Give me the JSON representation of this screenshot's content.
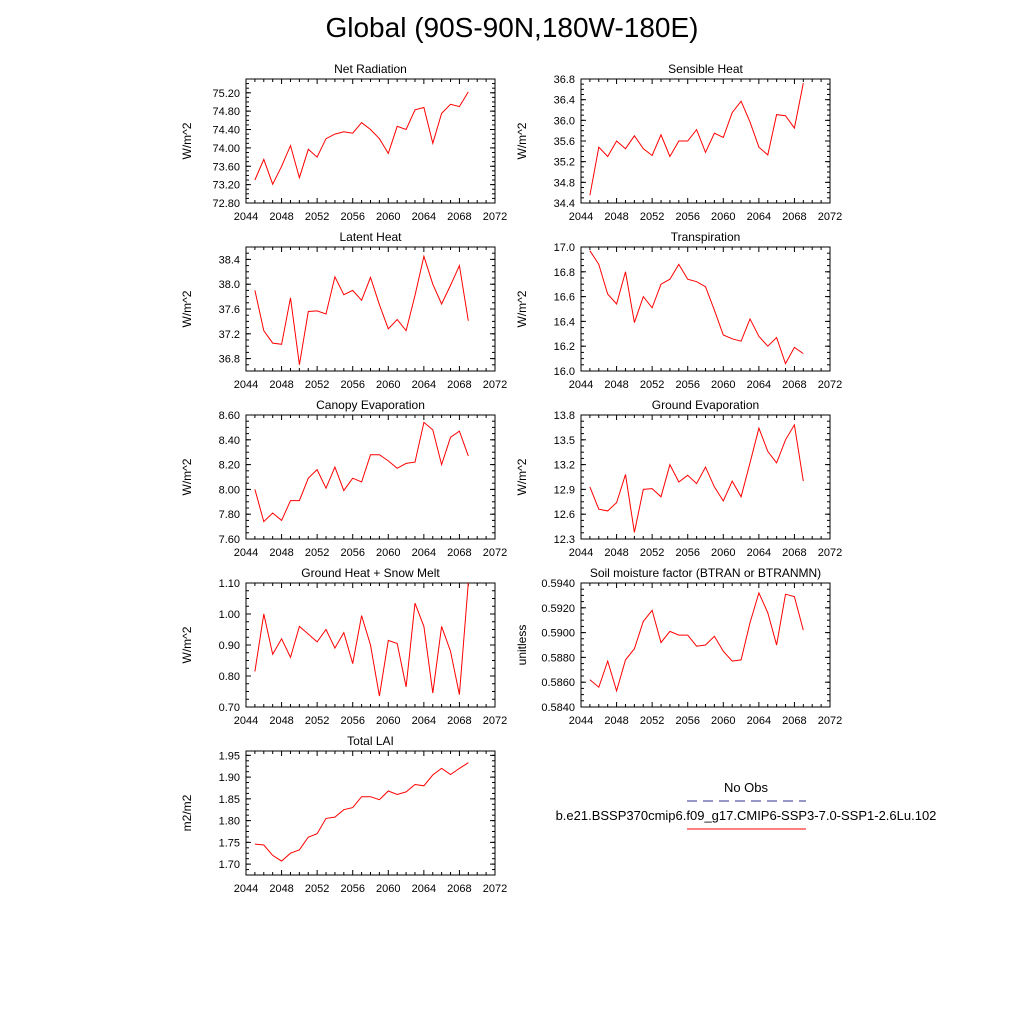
{
  "figure_title": "Global (90S-90N,180W-180E)",
  "chart_data": [
    {
      "type": "line",
      "title": "Net Radiation",
      "ylabel": "W/m^2",
      "xlim": [
        2044,
        2072
      ],
      "xticks": [
        "2044",
        "2048",
        "2052",
        "2056",
        "2060",
        "2064",
        "2068",
        "2072"
      ],
      "ylim": [
        72.8,
        75.5
      ],
      "yticks": [
        "72.80",
        "73.20",
        "73.60",
        "74.00",
        "74.40",
        "74.80",
        "75.20"
      ],
      "x": [
        2045,
        2046,
        2047,
        2048,
        2049,
        2050,
        2051,
        2052,
        2053,
        2054,
        2055,
        2056,
        2057,
        2058,
        2059,
        2060,
        2061,
        2062,
        2063,
        2064,
        2065,
        2066,
        2067,
        2068,
        2069
      ],
      "series": [
        {
          "color": "#ff0000",
          "values": [
            73.3,
            73.75,
            73.21,
            73.6,
            74.05,
            73.35,
            73.97,
            73.8,
            74.2,
            74.3,
            74.35,
            74.32,
            74.55,
            74.4,
            74.2,
            73.88,
            74.47,
            74.4,
            74.83,
            74.88,
            74.1,
            74.75,
            74.95,
            74.9,
            75.22
          ]
        }
      ]
    },
    {
      "type": "line",
      "title": "Sensible Heat",
      "ylabel": "W/m^2",
      "xlim": [
        2044,
        2072
      ],
      "xticks": [
        "2044",
        "2048",
        "2052",
        "2056",
        "2060",
        "2064",
        "2068",
        "2072"
      ],
      "ylim": [
        34.4,
        36.8
      ],
      "yticks": [
        "34.4",
        "34.8",
        "35.2",
        "35.6",
        "36.0",
        "36.4",
        "36.8"
      ],
      "x": [
        2045,
        2046,
        2047,
        2048,
        2049,
        2050,
        2051,
        2052,
        2053,
        2054,
        2055,
        2056,
        2057,
        2058,
        2059,
        2060,
        2061,
        2062,
        2063,
        2064,
        2065,
        2066,
        2067,
        2068,
        2069
      ],
      "series": [
        {
          "color": "#ff0000",
          "values": [
            34.55,
            35.48,
            35.3,
            35.6,
            35.45,
            35.7,
            35.45,
            35.32,
            35.72,
            35.3,
            35.6,
            35.6,
            35.82,
            35.38,
            35.75,
            35.67,
            36.15,
            36.37,
            35.97,
            35.48,
            35.33,
            36.11,
            36.09,
            35.85,
            36.72
          ]
        }
      ]
    },
    {
      "type": "line",
      "title": "Latent Heat",
      "ylabel": "W/m^2",
      "xlim": [
        2044,
        2072
      ],
      "xticks": [
        "2044",
        "2048",
        "2052",
        "2056",
        "2060",
        "2064",
        "2068",
        "2072"
      ],
      "ylim": [
        36.6,
        38.6
      ],
      "yticks": [
        "36.8",
        "37.2",
        "37.6",
        "38.0",
        "38.4"
      ],
      "x": [
        2045,
        2046,
        2047,
        2048,
        2049,
        2050,
        2051,
        2052,
        2053,
        2054,
        2055,
        2056,
        2057,
        2058,
        2059,
        2060,
        2061,
        2062,
        2063,
        2064,
        2065,
        2066,
        2067,
        2068,
        2069
      ],
      "series": [
        {
          "color": "#ff0000",
          "values": [
            37.9,
            37.25,
            37.05,
            37.03,
            37.78,
            36.7,
            37.56,
            37.57,
            37.52,
            38.12,
            37.83,
            37.9,
            37.74,
            38.11,
            37.67,
            37.28,
            37.43,
            37.25,
            37.82,
            38.45,
            38.0,
            37.68,
            37.98,
            38.3,
            37.41
          ]
        }
      ]
    },
    {
      "type": "line",
      "title": "Transpiration",
      "ylabel": "W/m^2",
      "xlim": [
        2044,
        2072
      ],
      "xticks": [
        "2044",
        "2048",
        "2052",
        "2056",
        "2060",
        "2064",
        "2068",
        "2072"
      ],
      "ylim": [
        16.0,
        17.0
      ],
      "yticks": [
        "16.0",
        "16.2",
        "16.4",
        "16.6",
        "16.8",
        "17.0"
      ],
      "x": [
        2045,
        2046,
        2047,
        2048,
        2049,
        2050,
        2051,
        2052,
        2053,
        2054,
        2055,
        2056,
        2057,
        2058,
        2059,
        2060,
        2061,
        2062,
        2063,
        2064,
        2065,
        2066,
        2067,
        2068,
        2069
      ],
      "series": [
        {
          "color": "#ff0000",
          "values": [
            16.97,
            16.86,
            16.62,
            16.54,
            16.8,
            16.39,
            16.6,
            16.51,
            16.7,
            16.74,
            16.86,
            16.74,
            16.72,
            16.68,
            16.49,
            16.29,
            16.26,
            16.24,
            16.42,
            16.28,
            16.2,
            16.27,
            16.06,
            16.19,
            16.14
          ]
        }
      ]
    },
    {
      "type": "line",
      "title": "Canopy Evaporation",
      "ylabel": "W/m^2",
      "xlim": [
        2044,
        2072
      ],
      "xticks": [
        "2044",
        "2048",
        "2052",
        "2056",
        "2060",
        "2064",
        "2068",
        "2072"
      ],
      "ylim": [
        7.6,
        8.6
      ],
      "yticks": [
        "7.60",
        "7.80",
        "8.00",
        "8.20",
        "8.40",
        "8.60"
      ],
      "x": [
        2045,
        2046,
        2047,
        2048,
        2049,
        2050,
        2051,
        2052,
        2053,
        2054,
        2055,
        2056,
        2057,
        2058,
        2059,
        2060,
        2061,
        2062,
        2063,
        2064,
        2065,
        2066,
        2067,
        2068,
        2069
      ],
      "series": [
        {
          "color": "#ff0000",
          "values": [
            8.0,
            7.74,
            7.81,
            7.75,
            7.91,
            7.91,
            8.09,
            8.16,
            8.01,
            8.18,
            7.99,
            8.09,
            8.06,
            8.28,
            8.28,
            8.23,
            8.17,
            8.21,
            8.22,
            8.54,
            8.48,
            8.2,
            8.42,
            8.47,
            8.27
          ]
        }
      ]
    },
    {
      "type": "line",
      "title": "Ground Evaporation",
      "ylabel": "W/m^2",
      "xlim": [
        2044,
        2072
      ],
      "xticks": [
        "2044",
        "2048",
        "2052",
        "2056",
        "2060",
        "2064",
        "2068",
        "2072"
      ],
      "ylim": [
        12.3,
        13.8
      ],
      "yticks": [
        "12.3",
        "12.6",
        "12.9",
        "13.2",
        "13.5",
        "13.8"
      ],
      "x": [
        2045,
        2046,
        2047,
        2048,
        2049,
        2050,
        2051,
        2052,
        2053,
        2054,
        2055,
        2056,
        2057,
        2058,
        2059,
        2060,
        2061,
        2062,
        2063,
        2064,
        2065,
        2066,
        2067,
        2068,
        2069
      ],
      "series": [
        {
          "color": "#ff0000",
          "values": [
            12.93,
            12.66,
            12.64,
            12.74,
            13.08,
            12.38,
            12.9,
            12.91,
            12.81,
            13.2,
            12.99,
            13.07,
            12.97,
            13.17,
            12.93,
            12.76,
            13.0,
            12.81,
            13.22,
            13.64,
            13.36,
            13.22,
            13.5,
            13.68,
            13.0
          ]
        }
      ]
    },
    {
      "type": "line",
      "title": "Ground Heat + Snow Melt",
      "ylabel": "W/m^2",
      "xlim": [
        2044,
        2072
      ],
      "xticks": [
        "2044",
        "2048",
        "2052",
        "2056",
        "2060",
        "2064",
        "2068",
        "2072"
      ],
      "ylim": [
        0.7,
        1.1
      ],
      "yticks": [
        "0.70",
        "0.80",
        "0.90",
        "1.00",
        "1.10"
      ],
      "x": [
        2045,
        2046,
        2047,
        2048,
        2049,
        2050,
        2051,
        2052,
        2053,
        2054,
        2055,
        2056,
        2057,
        2058,
        2059,
        2060,
        2061,
        2062,
        2063,
        2064,
        2065,
        2066,
        2067,
        2068,
        2069
      ],
      "series": [
        {
          "color": "#ff0000",
          "values": [
            0.815,
            1.0,
            0.87,
            0.92,
            0.86,
            0.96,
            0.935,
            0.91,
            0.95,
            0.89,
            0.94,
            0.84,
            0.995,
            0.9,
            0.735,
            0.915,
            0.905,
            0.765,
            1.035,
            0.96,
            0.745,
            0.96,
            0.88,
            0.74,
            1.1
          ]
        }
      ]
    },
    {
      "type": "line",
      "title": "Soil moisture factor (BTRAN or BTRANMN)",
      "ylabel": "unitless",
      "xlim": [
        2044,
        2072
      ],
      "xticks": [
        "2044",
        "2048",
        "2052",
        "2056",
        "2060",
        "2064",
        "2068",
        "2072"
      ],
      "ylim": [
        0.584,
        0.594
      ],
      "yticks": [
        "0.5840",
        "0.5860",
        "0.5880",
        "0.5900",
        "0.5920",
        "0.5940"
      ],
      "x": [
        2045,
        2046,
        2047,
        2048,
        2049,
        2050,
        2051,
        2052,
        2053,
        2054,
        2055,
        2056,
        2057,
        2058,
        2059,
        2060,
        2061,
        2062,
        2063,
        2064,
        2065,
        2066,
        2067,
        2068,
        2069
      ],
      "series": [
        {
          "color": "#ff0000",
          "values": [
            0.5862,
            0.5856,
            0.5877,
            0.5853,
            0.5878,
            0.5887,
            0.5909,
            0.5918,
            0.5892,
            0.5901,
            0.5898,
            0.5898,
            0.5889,
            0.589,
            0.5897,
            0.5885,
            0.5877,
            0.5878,
            0.5908,
            0.5932,
            0.5916,
            0.589,
            0.5931,
            0.5929,
            0.5902
          ]
        }
      ]
    },
    {
      "type": "line",
      "title": "Total LAI",
      "ylabel": "m2/m2",
      "xlim": [
        2044,
        2072
      ],
      "xticks": [
        "2044",
        "2048",
        "2052",
        "2056",
        "2060",
        "2064",
        "2068",
        "2072"
      ],
      "ylim": [
        1.675,
        1.96
      ],
      "yticks": [
        "1.70",
        "1.75",
        "1.80",
        "1.85",
        "1.90",
        "1.95"
      ],
      "x": [
        2045,
        2046,
        2047,
        2048,
        2049,
        2050,
        2051,
        2052,
        2053,
        2054,
        2055,
        2056,
        2057,
        2058,
        2059,
        2060,
        2061,
        2062,
        2063,
        2064,
        2065,
        2066,
        2067,
        2068,
        2069
      ],
      "series": [
        {
          "color": "#ff0000",
          "values": [
            1.746,
            1.744,
            1.72,
            1.707,
            1.725,
            1.733,
            1.762,
            1.77,
            1.805,
            1.808,
            1.825,
            1.83,
            1.855,
            1.855,
            1.848,
            1.868,
            1.86,
            1.866,
            1.883,
            1.88,
            1.905,
            1.92,
            1.906,
            1.92,
            1.933
          ]
        }
      ]
    }
  ],
  "legend": {
    "items": [
      {
        "label": "No Obs",
        "color": "#5a5aa8",
        "dash": "dashed"
      },
      {
        "label": "b.e21.BSSP370cmip6.f09_g17.CMIP6-SSP3-7.0-SSP1-2.6Lu.102",
        "color": "#ff0000",
        "dash": "solid"
      }
    ]
  }
}
